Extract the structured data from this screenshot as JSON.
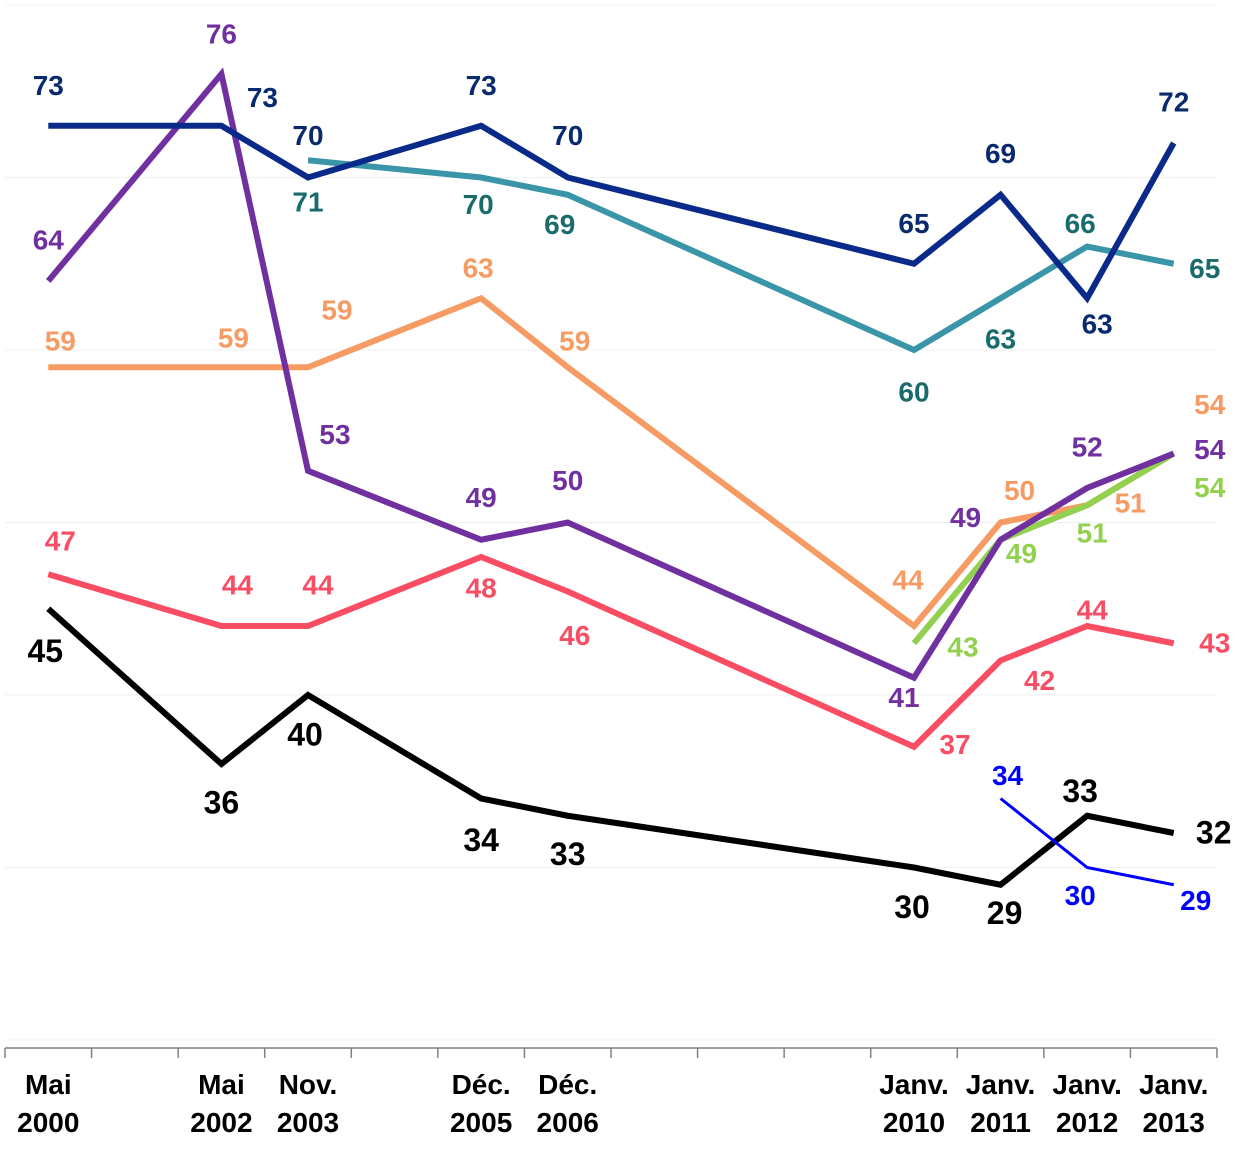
{
  "chart_data": {
    "type": "line",
    "categories": [
      "Mai 2000",
      "Mai 2002",
      "Nov. 2003",
      "Déc. 2005",
      "Déc. 2006",
      "Janv. 2010",
      "Janv. 2011",
      "Janv. 2012",
      "Janv. 2013"
    ],
    "ylim": [
      20,
      80
    ],
    "yticks": [
      20,
      30,
      40,
      50,
      60,
      70,
      80
    ],
    "grid": true,
    "series": [
      {
        "color": "#000000",
        "label_color": "#000000",
        "values": [
          45,
          36,
          40,
          34,
          33,
          30,
          29,
          33,
          32
        ]
      },
      {
        "color": "#f94d63",
        "label_color": "#f94d63",
        "values": [
          47,
          44,
          44,
          48,
          46,
          37,
          42,
          44,
          43
        ]
      },
      {
        "color": "#f79b64",
        "label_color": "#f79b64",
        "values": [
          59,
          59,
          59,
          63,
          59,
          44,
          50,
          51,
          54
        ]
      },
      {
        "color": "#92d050",
        "label_color": "#92d050",
        "values": [
          null,
          null,
          null,
          null,
          null,
          43,
          49,
          51,
          54
        ]
      },
      {
        "color": "#7030a0",
        "label_color": "#7030a0",
        "values": [
          64,
          76,
          53,
          49,
          50,
          41,
          49,
          52,
          54
        ]
      },
      {
        "color": "#3a95a8",
        "label_color": "#1a6b6b",
        "values": [
          null,
          null,
          71,
          70,
          69,
          60,
          63,
          66,
          65
        ]
      },
      {
        "color": "#0a2a8a",
        "label_color": "#0a2a6e",
        "values": [
          73,
          73,
          70,
          73,
          70,
          65,
          69,
          63,
          72
        ]
      },
      {
        "color": "#0000ff",
        "label_color": "#0000ff",
        "values": [
          null,
          null,
          null,
          null,
          null,
          null,
          34,
          30,
          29
        ]
      }
    ]
  }
}
